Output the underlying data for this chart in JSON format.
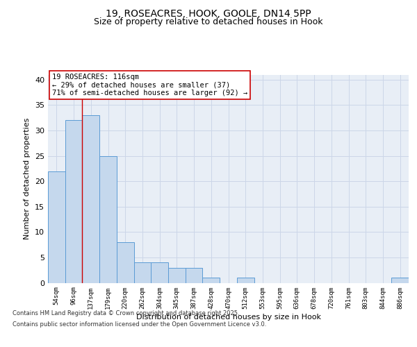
{
  "title_line1": "19, ROSEACRES, HOOK, GOOLE, DN14 5PP",
  "title_line2": "Size of property relative to detached houses in Hook",
  "xlabel": "Distribution of detached houses by size in Hook",
  "ylabel": "Number of detached properties",
  "categories": [
    "54sqm",
    "96sqm",
    "137sqm",
    "179sqm",
    "220sqm",
    "262sqm",
    "304sqm",
    "345sqm",
    "387sqm",
    "428sqm",
    "470sqm",
    "512sqm",
    "553sqm",
    "595sqm",
    "636sqm",
    "678sqm",
    "720sqm",
    "761sqm",
    "803sqm",
    "844sqm",
    "886sqm"
  ],
  "values": [
    22,
    32,
    33,
    25,
    8,
    4,
    4,
    3,
    3,
    1,
    0,
    1,
    0,
    0,
    0,
    0,
    0,
    0,
    0,
    0,
    1
  ],
  "bar_color": "#c5d8ed",
  "bar_edge_color": "#5b9bd5",
  "grid_color": "#ccd6e8",
  "plot_bg_color": "#e8eef6",
  "vline_x": 1.5,
  "vline_color": "#cc0000",
  "annotation_text": "19 ROSEACRES: 116sqm\n← 29% of detached houses are smaller (37)\n71% of semi-detached houses are larger (92) →",
  "annotation_box_color": "#ffffff",
  "annotation_edge_color": "#cc0000",
  "footnote_line1": "Contains HM Land Registry data © Crown copyright and database right 2025.",
  "footnote_line2": "Contains public sector information licensed under the Open Government Licence v3.0.",
  "ylim": [
    0,
    41
  ],
  "yticks": [
    0,
    5,
    10,
    15,
    20,
    25,
    30,
    35,
    40
  ]
}
